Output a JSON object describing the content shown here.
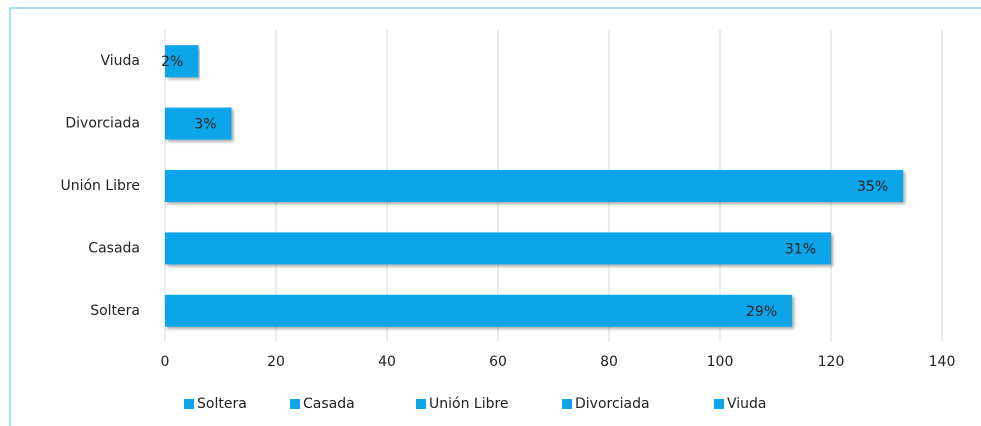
{
  "chart_data": {
    "type": "bar",
    "orientation": "horizontal",
    "categories": [
      "Soltera",
      "Casada",
      "Unión Libre",
      "Divorciada",
      "Viuda"
    ],
    "values": [
      113,
      120,
      133,
      12,
      6
    ],
    "value_labels": [
      "29%",
      "31%",
      "35%",
      "3%",
      "2%"
    ],
    "color": "#0ea5e9",
    "xlim": [
      0,
      140
    ],
    "xticks": [
      0,
      20,
      40,
      60,
      80,
      100,
      120,
      140
    ],
    "grid": true,
    "legend": "bottom"
  }
}
